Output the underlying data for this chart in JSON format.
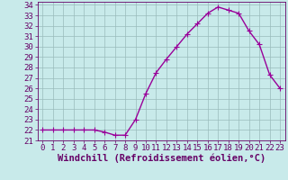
{
  "x": [
    0,
    1,
    2,
    3,
    4,
    5,
    6,
    7,
    8,
    9,
    10,
    11,
    12,
    13,
    14,
    15,
    16,
    17,
    18,
    19,
    20,
    21,
    22,
    23
  ],
  "y": [
    22.0,
    22.0,
    22.0,
    22.0,
    22.0,
    22.0,
    21.8,
    21.5,
    21.5,
    23.0,
    25.5,
    27.5,
    28.8,
    30.0,
    31.2,
    32.2,
    33.2,
    33.8,
    33.5,
    33.2,
    31.5,
    30.2,
    27.3,
    26.0
  ],
  "line_color": "#990099",
  "marker": "+",
  "marker_size": 4,
  "background_color": "#c8eaea",
  "grid_color": "#99bbbb",
  "xlabel": "Windchill (Refroidissement éolien,°C)",
  "xlim_min": -0.5,
  "xlim_max": 23.5,
  "ylim_min": 21.0,
  "ylim_max": 34.3,
  "yticks": [
    21,
    22,
    23,
    24,
    25,
    26,
    27,
    28,
    29,
    30,
    31,
    32,
    33,
    34
  ],
  "xticks": [
    0,
    1,
    2,
    3,
    4,
    5,
    6,
    7,
    8,
    9,
    10,
    11,
    12,
    13,
    14,
    15,
    16,
    17,
    18,
    19,
    20,
    21,
    22,
    23
  ],
  "tick_color": "#660066",
  "label_color": "#660066",
  "font_size": 6.5,
  "xlabel_font_size": 7.5,
  "line_width": 1.0,
  "marker_edge_width": 0.8
}
